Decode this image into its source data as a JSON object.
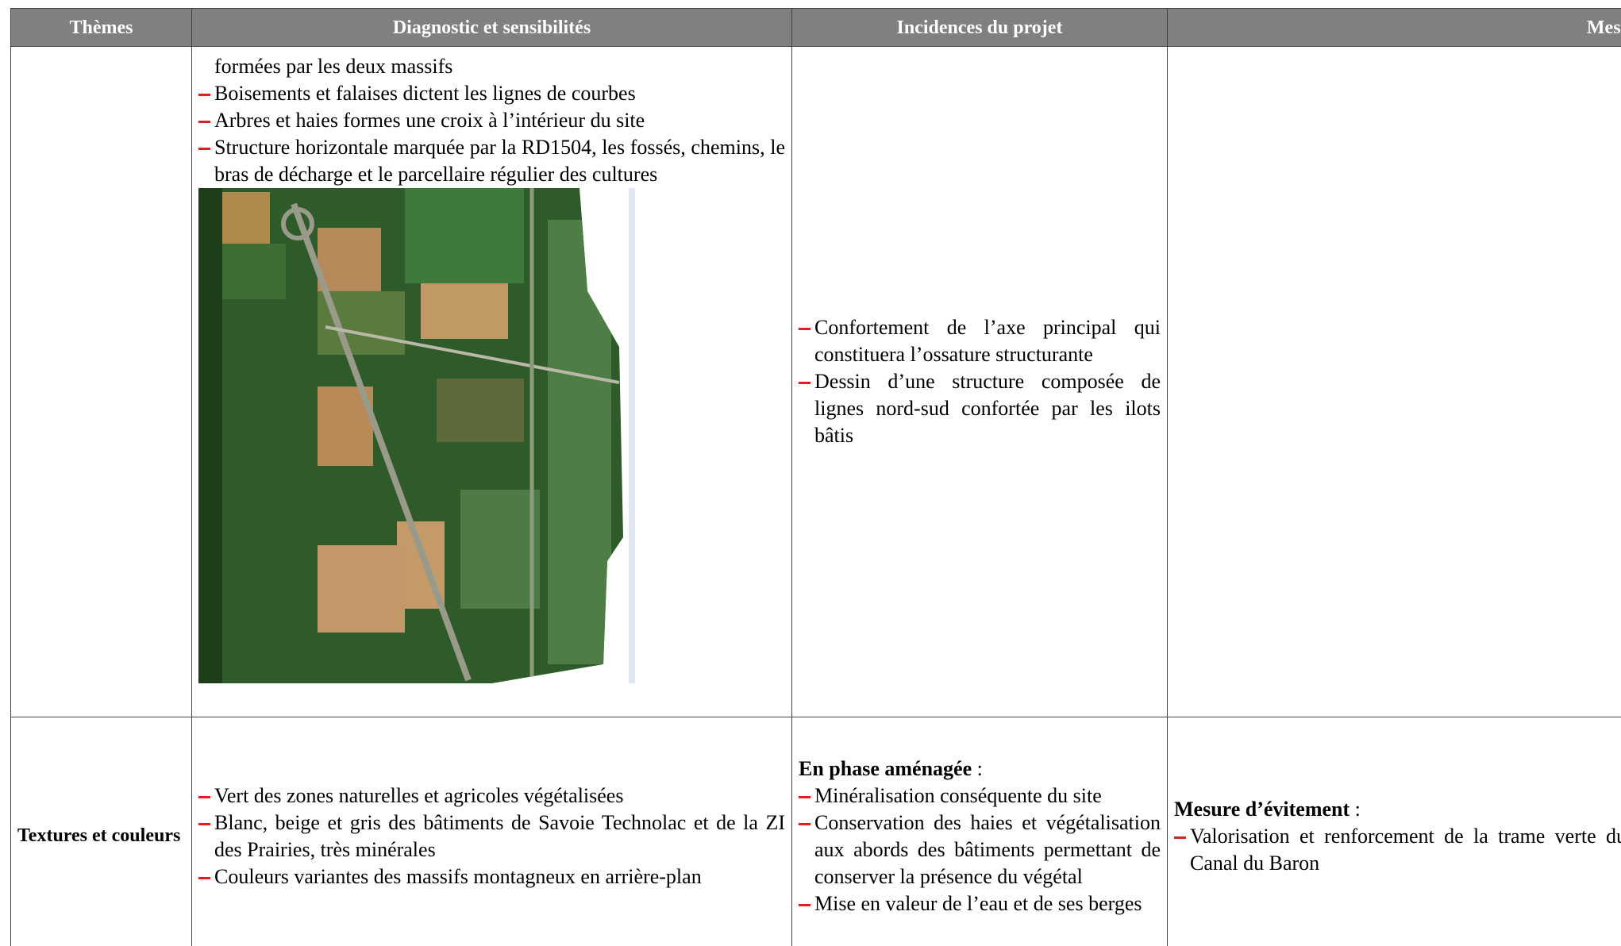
{
  "table": {
    "headers": [
      "Thèmes",
      "Diagnostic et sensibilités",
      "Incidences du projet",
      "Mesures"
    ],
    "rows": [
      {
        "diagnostic": {
          "continuation": "formées par les deux massifs",
          "items": [
            "Boisements et falaises dictent les lignes de courbes",
            "Arbres et haies formes une croix à l’intérieur du site",
            "Structure horizontale marquée par la RD1504, les fossés, chemins, le bras de décharge et le parcellaire régulier des cultures"
          ]
        },
        "incidences": {
          "items": [
            "Confortement de l’axe principal qui constituera l’ossature structurante",
            "Dessin d’une structure composée de lignes nord-sud confortée par les ilots bâtis"
          ]
        }
      },
      {
        "theme": "Textures et couleurs",
        "diagnostic": {
          "items": [
            "Vert des zones naturelles et agricoles végétalisées",
            "Blanc, beige et gris des bâtiments de Savoie Technolac et de la ZI des Prairies, très minérales",
            "Couleurs variantes des massifs montagneux en arrière-plan"
          ]
        },
        "incidences": {
          "heading": "En phase aménagée",
          "after_heading": ":",
          "items": [
            "Minéralisation conséquente du site",
            "Conservation des haies et végétalisation aux abords des bâtiments permettant de conserver la présence du végétal",
            "Mise en valeur de l’eau et de ses berges"
          ]
        },
        "mesures": {
          "heading": "Mesure d’évitement",
          "after_heading": ":",
          "items": [
            "Valorisation et renforcement de la trame verte du Canal du Baron"
          ]
        }
      }
    ]
  }
}
